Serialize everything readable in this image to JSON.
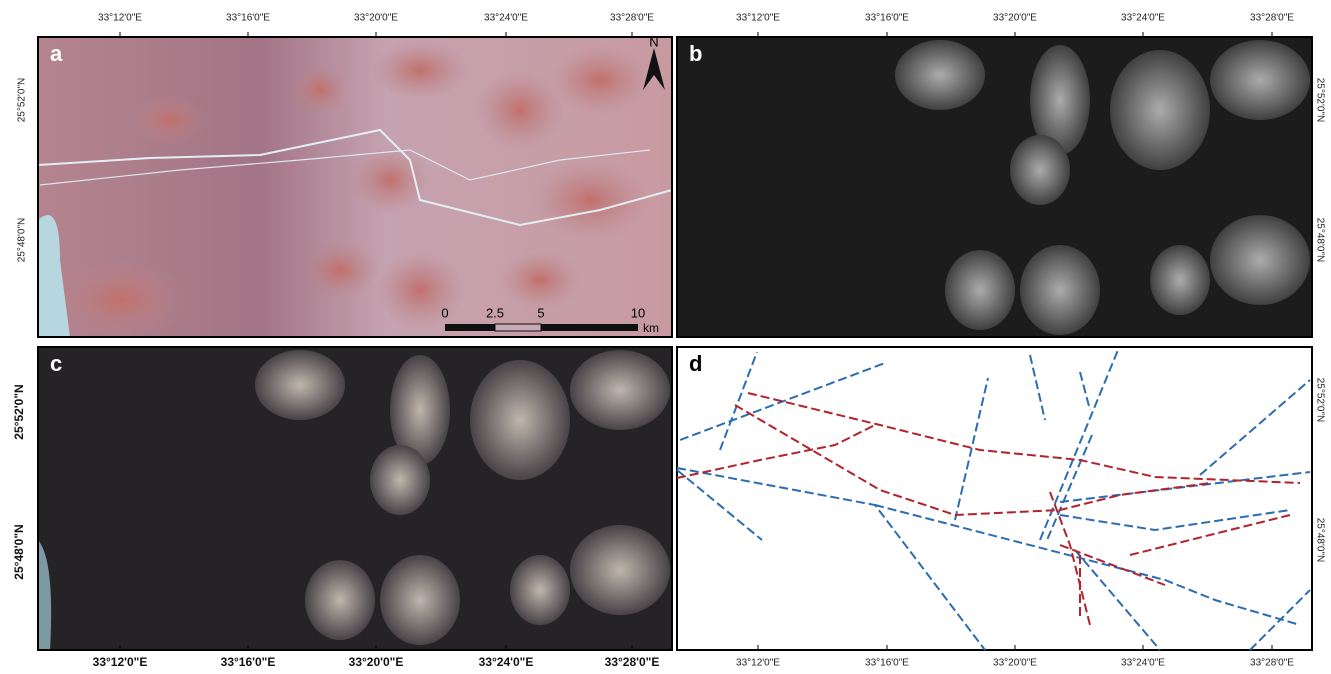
{
  "panels": [
    {
      "label": "a",
      "x_labels": [
        "33°12'0\"E",
        "33°16'0\"E",
        "33°20'0\"E",
        "33°24'0\"E",
        "33°28'0\"E"
      ],
      "y_labels": [
        "25°52'0\"N",
        "25°48'0\"N"
      ]
    },
    {
      "label": "b",
      "x_labels": [
        "33°12'0\"E",
        "33°16'0\"E",
        "33°20'0\"E",
        "33°24'0\"E",
        "33°28'0\"E"
      ],
      "y_labels": [
        "25°52'0\"N",
        "25°48'0\"N"
      ]
    },
    {
      "label": "c",
      "x_labels": [
        "33°12'0\"E",
        "33°16'0\"E",
        "33°20'0\"E",
        "33°24'0\"E",
        "33°28'0\"E"
      ],
      "y_labels": [
        "25°52'0\"N",
        "25°48'0\"N"
      ]
    },
    {
      "label": "d",
      "x_labels": [
        "33°12'0\"E",
        "33°16'0\"E",
        "33°20'0\"E",
        "33°24'0\"E",
        "33°28'0\"E"
      ],
      "y_labels": [
        "25°52'0\"N",
        "25°48'0\"N"
      ]
    }
  ],
  "scale_bar": {
    "ticks": [
      0,
      2.5,
      5,
      10
    ],
    "unit": "km"
  },
  "north": "N"
}
